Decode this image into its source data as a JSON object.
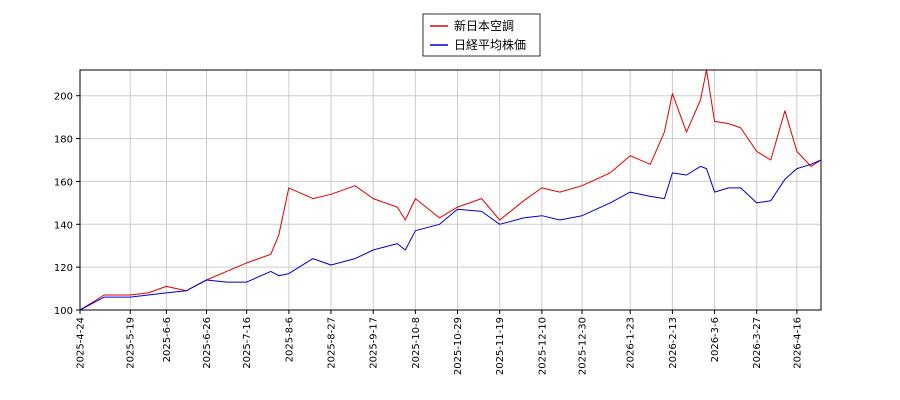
{
  "chart_data": {
    "type": "line",
    "title": "",
    "xlabel": "",
    "ylabel": "",
    "ylim": [
      100,
      212
    ],
    "yticks": [
      100,
      120,
      140,
      160,
      180,
      200
    ],
    "xticks": [
      "2025-4-24",
      "2025-5-19",
      "2025-6-6",
      "2025-6-26",
      "2025-7-16",
      "2025-8-6",
      "2025-8-27",
      "2025-9-17",
      "2025-10-8",
      "2025-10-29",
      "2025-11-19",
      "2025-12-10",
      "2025-12-30",
      "2026-1-23",
      "2026-2-13",
      "2026-3-6",
      "2026-3-27",
      "2026-4-16"
    ],
    "grid": true,
    "legend_position": "top-center",
    "series": [
      {
        "name": "新日本空調",
        "color": "#dd0000",
        "x": [
          "2025-4-24",
          "2025-5-6",
          "2025-5-19",
          "2025-5-28",
          "2025-6-6",
          "2025-6-16",
          "2025-6-26",
          "2025-7-6",
          "2025-7-16",
          "2025-7-28",
          "2025-8-1",
          "2025-8-6",
          "2025-8-18",
          "2025-8-27",
          "2025-9-8",
          "2025-9-17",
          "2025-9-29",
          "2025-10-3",
          "2025-10-8",
          "2025-10-20",
          "2025-10-29",
          "2025-11-10",
          "2025-11-19",
          "2025-12-1",
          "2025-12-10",
          "2025-12-19",
          "2025-12-30",
          "2026-1-13",
          "2026-1-23",
          "2026-2-2",
          "2026-2-9",
          "2026-2-13",
          "2026-2-20",
          "2026-2-27",
          "2026-3-2",
          "2026-3-6",
          "2026-3-13",
          "2026-3-19",
          "2026-3-27",
          "2026-4-3",
          "2026-4-10",
          "2026-4-16",
          "2026-4-23",
          "2026-4-28"
        ],
        "values": [
          100,
          107,
          107,
          108,
          111,
          109,
          114,
          118,
          122,
          126,
          135,
          157,
          152,
          154,
          158,
          152,
          148,
          142,
          152,
          143,
          148,
          152,
          142,
          151,
          157,
          155,
          158,
          164,
          172,
          168,
          183,
          201,
          183,
          198,
          212,
          188,
          187,
          185,
          174,
          170,
          193,
          174,
          167,
          170
        ]
      },
      {
        "name": "日経平均株価",
        "color": "#0000cc",
        "x": [
          "2025-4-24",
          "2025-5-6",
          "2025-5-19",
          "2025-5-28",
          "2025-6-6",
          "2025-6-16",
          "2025-6-26",
          "2025-7-6",
          "2025-7-16",
          "2025-7-28",
          "2025-8-1",
          "2025-8-6",
          "2025-8-18",
          "2025-8-27",
          "2025-9-8",
          "2025-9-17",
          "2025-9-29",
          "2025-10-3",
          "2025-10-8",
          "2025-10-20",
          "2025-10-29",
          "2025-11-10",
          "2025-11-19",
          "2025-12-1",
          "2025-12-10",
          "2025-12-19",
          "2025-12-30",
          "2026-1-13",
          "2026-1-23",
          "2026-2-2",
          "2026-2-9",
          "2026-2-13",
          "2026-2-20",
          "2026-2-27",
          "2026-3-2",
          "2026-3-6",
          "2026-3-13",
          "2026-3-19",
          "2026-3-27",
          "2026-4-3",
          "2026-4-10",
          "2026-4-16",
          "2026-4-23",
          "2026-4-28"
        ],
        "values": [
          100,
          106,
          106,
          107,
          108,
          109,
          114,
          113,
          113,
          118,
          116,
          117,
          124,
          121,
          124,
          128,
          131,
          128,
          137,
          140,
          147,
          146,
          140,
          143,
          144,
          142,
          144,
          150,
          155,
          153,
          152,
          164,
          163,
          167,
          166,
          155,
          157,
          157,
          150,
          151,
          161,
          166,
          168,
          170
        ]
      }
    ]
  }
}
